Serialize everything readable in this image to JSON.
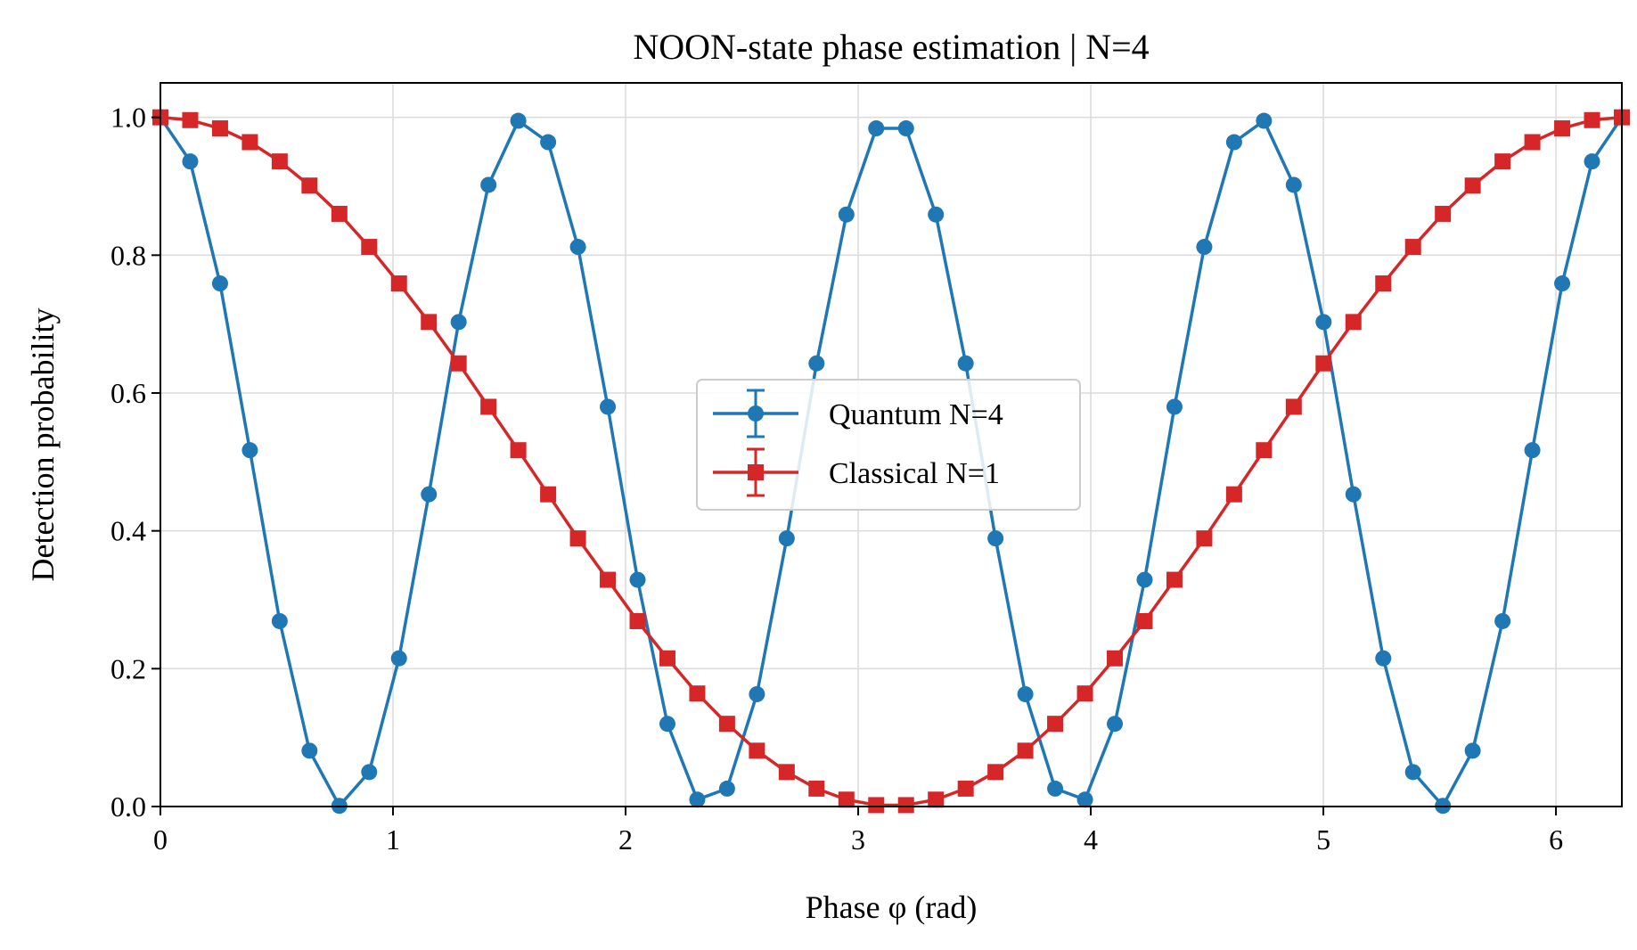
{
  "chart_data": {
    "type": "line",
    "title": "NOON-state phase estimation | N=4",
    "xlabel": "Phase φ (rad)",
    "ylabel": "Detection probability",
    "xlim": [
      0,
      6.2832
    ],
    "ylim": [
      0,
      1.05
    ],
    "xticks": [
      0,
      1,
      2,
      3,
      4,
      5,
      6
    ],
    "xtick_labels": [
      "0",
      "1",
      "2",
      "3",
      "4",
      "5",
      "6"
    ],
    "yticks": [
      0.0,
      0.2,
      0.4,
      0.6,
      0.8,
      1.0
    ],
    "ytick_labels": [
      "0.0",
      "0.2",
      "0.4",
      "0.6",
      "0.8",
      "1.0"
    ],
    "grid": true,
    "legend_position": "center",
    "x": [
      0.0,
      0.1282,
      0.2565,
      0.3847,
      0.5129,
      0.6411,
      0.7694,
      0.8976,
      1.0258,
      1.1541,
      1.2823,
      1.4105,
      1.5387,
      1.667,
      1.7952,
      1.9234,
      2.0517,
      2.1799,
      2.3081,
      2.4363,
      2.5646,
      2.6928,
      2.821,
      2.9493,
      3.0775,
      3.2057,
      3.3339,
      3.4622,
      3.5904,
      3.7186,
      3.8468,
      3.9751,
      4.1033,
      4.2315,
      4.3598,
      4.488,
      4.6162,
      4.7444,
      4.8727,
      5.0009,
      5.1291,
      5.2574,
      5.3856,
      5.5138,
      5.642,
      5.7703,
      5.8985,
      6.0267,
      6.155,
      6.2832
    ],
    "series": [
      {
        "name": "Quantum N=4",
        "color": "#1f77b4",
        "marker": "circle",
        "values": [
          1.0,
          0.936,
          0.759,
          0.517,
          0.269,
          0.081,
          0.001,
          0.05,
          0.215,
          0.453,
          0.703,
          0.902,
          0.995,
          0.964,
          0.812,
          0.58,
          0.329,
          0.12,
          0.01,
          0.026,
          0.163,
          0.389,
          0.643,
          0.859,
          0.984,
          0.984,
          0.859,
          0.643,
          0.389,
          0.163,
          0.026,
          0.01,
          0.12,
          0.329,
          0.58,
          0.812,
          0.964,
          0.995,
          0.902,
          0.703,
          0.453,
          0.215,
          0.05,
          0.001,
          0.081,
          0.269,
          0.517,
          0.759,
          0.936,
          1.0
        ]
      },
      {
        "name": "Classical N=1",
        "color": "#d62728",
        "marker": "square",
        "values": [
          1.0,
          0.996,
          0.984,
          0.964,
          0.936,
          0.901,
          0.86,
          0.812,
          0.759,
          0.703,
          0.643,
          0.58,
          0.517,
          0.453,
          0.389,
          0.329,
          0.269,
          0.215,
          0.164,
          0.12,
          0.081,
          0.05,
          0.026,
          0.01,
          0.002,
          0.002,
          0.01,
          0.026,
          0.05,
          0.081,
          0.12,
          0.164,
          0.215,
          0.269,
          0.329,
          0.389,
          0.453,
          0.517,
          0.58,
          0.643,
          0.703,
          0.759,
          0.812,
          0.86,
          0.901,
          0.936,
          0.964,
          0.984,
          0.996,
          1.0
        ]
      }
    ]
  }
}
